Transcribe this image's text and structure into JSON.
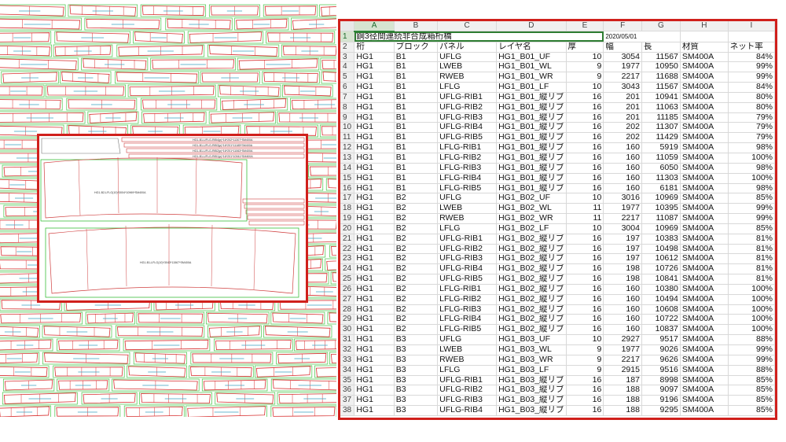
{
  "drawing": {
    "inset_labels": [
      "HG1-B1-UFLG-RIB4(p)*16*202*11307*SM400A",
      "HG1-B1-UFLG-RIB3(p)*16*201*11185*SM400A",
      "HG1-B1-UFLG-RIB2(p)*16*201*11063*SM400A",
      "HG1-B1-UFLG-RIB1(p)*16*201*10941*SM400A",
      "HG1-B2-LFLG(10)*3004*10969*SM400A",
      "HG1-B1-LFLG(10)*3043*11567*SM400A"
    ]
  },
  "spreadsheet": {
    "columns": [
      "A",
      "B",
      "C",
      "D",
      "E",
      "F",
      "G",
      "H",
      "I"
    ],
    "title": "鋼3径間連続非合成箱桁橋",
    "date": "2020/05/01",
    "headers": [
      "桁",
      "ブロック",
      "パネル",
      "レイヤ名",
      "厚",
      "幅",
      "長",
      "材質",
      "ネット率"
    ],
    "rows": [
      [
        "HG1",
        "B1",
        "UFLG",
        "HG1_B01_UF",
        "10",
        "3054",
        "11567",
        "SM400A",
        "84%"
      ],
      [
        "HG1",
        "B1",
        "LWEB",
        "HG1_B01_WL",
        "9",
        "1977",
        "10950",
        "SM400A",
        "99%"
      ],
      [
        "HG1",
        "B1",
        "RWEB",
        "HG1_B01_WR",
        "9",
        "2217",
        "11688",
        "SM400A",
        "99%"
      ],
      [
        "HG1",
        "B1",
        "LFLG",
        "HG1_B01_LF",
        "10",
        "3043",
        "11567",
        "SM400A",
        "84%"
      ],
      [
        "HG1",
        "B1",
        "UFLG-RIB1",
        "HG1_B01_縦リブ",
        "16",
        "201",
        "10941",
        "SM400A",
        "80%"
      ],
      [
        "HG1",
        "B1",
        "UFLG-RIB2",
        "HG1_B01_縦リブ",
        "16",
        "201",
        "11063",
        "SM400A",
        "80%"
      ],
      [
        "HG1",
        "B1",
        "UFLG-RIB3",
        "HG1_B01_縦リブ",
        "16",
        "201",
        "11185",
        "SM400A",
        "79%"
      ],
      [
        "HG1",
        "B1",
        "UFLG-RIB4",
        "HG1_B01_縦リブ",
        "16",
        "202",
        "11307",
        "SM400A",
        "79%"
      ],
      [
        "HG1",
        "B1",
        "UFLG-RIB5",
        "HG1_B01_縦リブ",
        "16",
        "202",
        "11429",
        "SM400A",
        "79%"
      ],
      [
        "HG1",
        "B1",
        "LFLG-RIB1",
        "HG1_B01_縦リブ",
        "16",
        "160",
        "5919",
        "SM400A",
        "98%"
      ],
      [
        "HG1",
        "B1",
        "LFLG-RIB2",
        "HG1_B01_縦リブ",
        "16",
        "160",
        "11059",
        "SM400A",
        "100%"
      ],
      [
        "HG1",
        "B1",
        "LFLG-RIB3",
        "HG1_B01_縦リブ",
        "16",
        "160",
        "6050",
        "SM400A",
        "98%"
      ],
      [
        "HG1",
        "B1",
        "LFLG-RIB4",
        "HG1_B01_縦リブ",
        "16",
        "160",
        "11303",
        "SM400A",
        "100%"
      ],
      [
        "HG1",
        "B1",
        "LFLG-RIB5",
        "HG1_B01_縦リブ",
        "16",
        "160",
        "6181",
        "SM400A",
        "98%"
      ],
      [
        "HG1",
        "B2",
        "UFLG",
        "HG1_B02_UF",
        "10",
        "3016",
        "10969",
        "SM400A",
        "85%"
      ],
      [
        "HG1",
        "B2",
        "LWEB",
        "HG1_B02_WL",
        "11",
        "1977",
        "10395",
        "SM400A",
        "99%"
      ],
      [
        "HG1",
        "B2",
        "RWEB",
        "HG1_B02_WR",
        "11",
        "2217",
        "11087",
        "SM400A",
        "99%"
      ],
      [
        "HG1",
        "B2",
        "LFLG",
        "HG1_B02_LF",
        "10",
        "3004",
        "10969",
        "SM400A",
        "85%"
      ],
      [
        "HG1",
        "B2",
        "UFLG-RIB1",
        "HG1_B02_縦リブ",
        "16",
        "197",
        "10383",
        "SM400A",
        "81%"
      ],
      [
        "HG1",
        "B2",
        "UFLG-RIB2",
        "HG1_B02_縦リブ",
        "16",
        "197",
        "10498",
        "SM400A",
        "81%"
      ],
      [
        "HG1",
        "B2",
        "UFLG-RIB3",
        "HG1_B02_縦リブ",
        "16",
        "197",
        "10612",
        "SM400A",
        "81%"
      ],
      [
        "HG1",
        "B2",
        "UFLG-RIB4",
        "HG1_B02_縦リブ",
        "16",
        "198",
        "10726",
        "SM400A",
        "81%"
      ],
      [
        "HG1",
        "B2",
        "UFLG-RIB5",
        "HG1_B02_縦リブ",
        "16",
        "198",
        "10841",
        "SM400A",
        "81%"
      ],
      [
        "HG1",
        "B2",
        "LFLG-RIB1",
        "HG1_B02_縦リブ",
        "16",
        "160",
        "10380",
        "SM400A",
        "100%"
      ],
      [
        "HG1",
        "B2",
        "LFLG-RIB2",
        "HG1_B02_縦リブ",
        "16",
        "160",
        "10494",
        "SM400A",
        "100%"
      ],
      [
        "HG1",
        "B2",
        "LFLG-RIB3",
        "HG1_B02_縦リブ",
        "16",
        "160",
        "10608",
        "SM400A",
        "100%"
      ],
      [
        "HG1",
        "B2",
        "LFLG-RIB4",
        "HG1_B02_縦リブ",
        "16",
        "160",
        "10722",
        "SM400A",
        "100%"
      ],
      [
        "HG1",
        "B2",
        "LFLG-RIB5",
        "HG1_B02_縦リブ",
        "16",
        "160",
        "10837",
        "SM400A",
        "100%"
      ],
      [
        "HG1",
        "B3",
        "UFLG",
        "HG1_B03_UF",
        "10",
        "2927",
        "9517",
        "SM400A",
        "88%"
      ],
      [
        "HG1",
        "B3",
        "LWEB",
        "HG1_B03_WL",
        "9",
        "1977",
        "9026",
        "SM400A",
        "99%"
      ],
      [
        "HG1",
        "B3",
        "RWEB",
        "HG1_B03_WR",
        "9",
        "2217",
        "9626",
        "SM400A",
        "99%"
      ],
      [
        "HG1",
        "B3",
        "LFLG",
        "HG1_B03_LF",
        "9",
        "2915",
        "9516",
        "SM400A",
        "88%"
      ],
      [
        "HG1",
        "B3",
        "UFLG-RIB1",
        "HG1_B03_縦リブ",
        "16",
        "187",
        "8998",
        "SM400A",
        "85%"
      ],
      [
        "HG1",
        "B3",
        "UFLG-RIB2",
        "HG1_B03_縦リブ",
        "16",
        "188",
        "9097",
        "SM400A",
        "85%"
      ],
      [
        "HG1",
        "B3",
        "UFLG-RIB3",
        "HG1_B03_縦リブ",
        "16",
        "188",
        "9196",
        "SM400A",
        "85%"
      ],
      [
        "HG1",
        "B3",
        "UFLG-RIB4",
        "HG1_B03_縦リブ",
        "16",
        "188",
        "9295",
        "SM400A",
        "85%"
      ]
    ],
    "colors": {
      "frame": "#d0201c",
      "grid": "#d9d9d9",
      "header_bg": "#f0f0f0",
      "selection": "#2e7d32"
    }
  }
}
